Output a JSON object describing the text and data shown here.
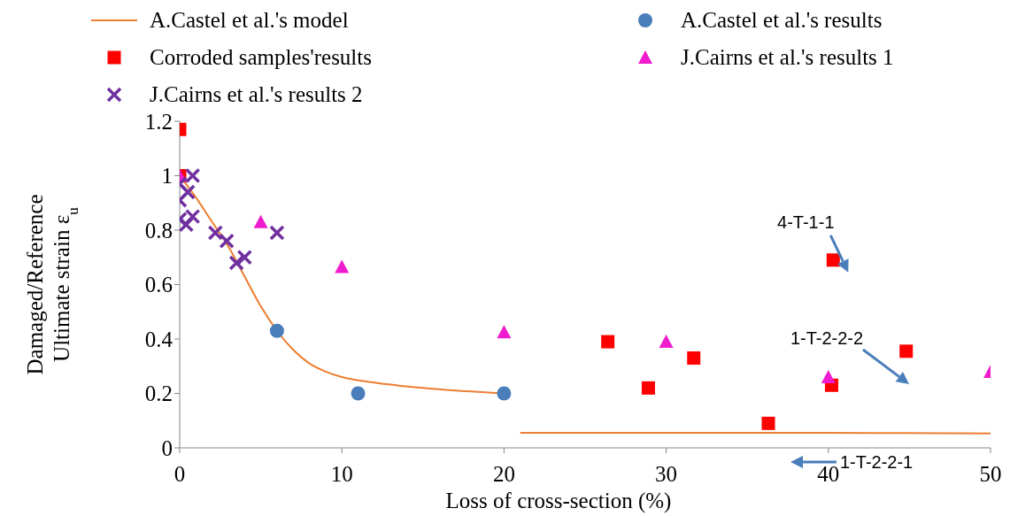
{
  "chart_data": {
    "type": "scatter",
    "xlabel": "Loss of cross-section (%)",
    "ylabel": "Damaged/Reference Ultimate strain ε$_{u}$",
    "xlim": [
      0,
      50
    ],
    "xticks": [
      0,
      10,
      20,
      30,
      40,
      50
    ],
    "ylim": [
      0,
      1.2
    ],
    "yticks": [
      0,
      0.2,
      0.4,
      0.6,
      0.8,
      1,
      1.2
    ],
    "grid": false,
    "legend": "top",
    "annotations": [
      {
        "text": "4-T-1-1",
        "x": 40.3,
        "y": 0.69
      },
      "1-T-2-2-2",
      "1-T-2-2-1"
    ],
    "series": [
      {
        "name": "A.Castel et al.'s model",
        "type": "line",
        "color": "#ed7d31",
        "marker": "none",
        "x": [
          0,
          1,
          2,
          3,
          4,
          5,
          6,
          7,
          8,
          9,
          10,
          12,
          15,
          20,
          20.5,
          21,
          30,
          40,
          50
        ],
        "values": [
          1,
          0.92,
          0.83,
          0.74,
          0.63,
          0.52,
          0.43,
          0.36,
          0.31,
          0.28,
          0.26,
          0.24,
          0.22,
          0.2,
          null,
          0.055,
          0.055,
          0.055,
          0.053
        ]
      },
      {
        "name": "A.Castel et al.'s results",
        "color": "#4a7ebb",
        "marker": "circle",
        "x": [
          6,
          11,
          20
        ],
        "values": [
          0.43,
          0.2,
          0.2
        ]
      },
      {
        "name": "Corroded samples'results",
        "color": "#ff0000",
        "marker": "square",
        "x": [
          0,
          0,
          26.4,
          28.9,
          31.7,
          36.3,
          40.2,
          40.3,
          44.8
        ],
        "values": [
          1.17,
          1,
          0.39,
          0.22,
          0.33,
          0.09,
          0.23,
          0.69,
          0.355
        ]
      },
      {
        "name": "J.Cairns et al.'s results 1",
        "color": "#ee1cce",
        "marker": "triangle",
        "x": [
          0,
          5,
          10,
          20,
          30,
          40,
          50
        ],
        "values": [
          1,
          0.83,
          0.665,
          0.425,
          0.39,
          0.26,
          0.28
        ]
      },
      {
        "name": "J.Cairns et al.'s results 2",
        "color": "#7030a0",
        "marker": "cross",
        "x": [
          0,
          0,
          0,
          0.5,
          0.8,
          0.4,
          0.8,
          2.2,
          2.9,
          3.5,
          4,
          6
        ],
        "values": [
          0.97,
          0.91,
          0.84,
          0.94,
          1,
          0.82,
          0.85,
          0.79,
          0.76,
          0.68,
          0.7,
          0.79
        ]
      }
    ]
  }
}
